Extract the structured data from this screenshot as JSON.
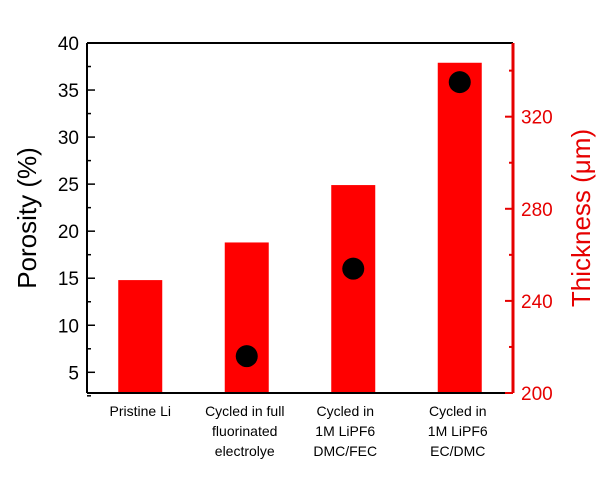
{
  "chart_data": {
    "type": "bar",
    "categories": [
      [
        "Pristine Li"
      ],
      [
        "Cycled in full",
        "fluorinated",
        "electrolye"
      ],
      [
        "Cycled in",
        "1M LiPF6",
        "DMC/FEC"
      ],
      [
        "Cycled in",
        "1M LiPF6",
        "EC/DMC"
      ]
    ],
    "series": [
      {
        "name": "Porosity",
        "kind": "bar",
        "axis": "left",
        "color": "#ff0000",
        "values": [
          14.8,
          18.8,
          24.9,
          37.9
        ]
      },
      {
        "name": "Thickness",
        "kind": "scatter",
        "axis": "right",
        "color": "#000000",
        "values": [
          null,
          216,
          254,
          335
        ]
      }
    ],
    "ylabel": "Porosity (%)",
    "y2label": "Thickness (μm)",
    "ylim": [
      2.8,
      40
    ],
    "y2lim": [
      200,
      352
    ],
    "yticks": [
      5,
      10,
      15,
      20,
      25,
      30,
      35,
      40
    ],
    "y2ticks": [
      200,
      240,
      280,
      320
    ],
    "grid": false,
    "legend": "none",
    "left_axis_color": "#000000",
    "right_axis_color": "#e60000"
  }
}
